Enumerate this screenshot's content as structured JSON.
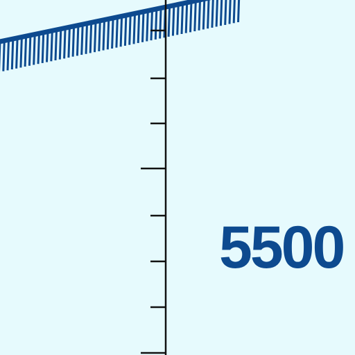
{
  "map": {
    "background_color": "#e6fafd",
    "ink_color": "#0d4a8f",
    "tick_color": "#111111",
    "elevation_label": "5500",
    "features": {
      "boundary": "hatched-airspace-boundary",
      "scale": "vertical-tick-scale"
    }
  }
}
